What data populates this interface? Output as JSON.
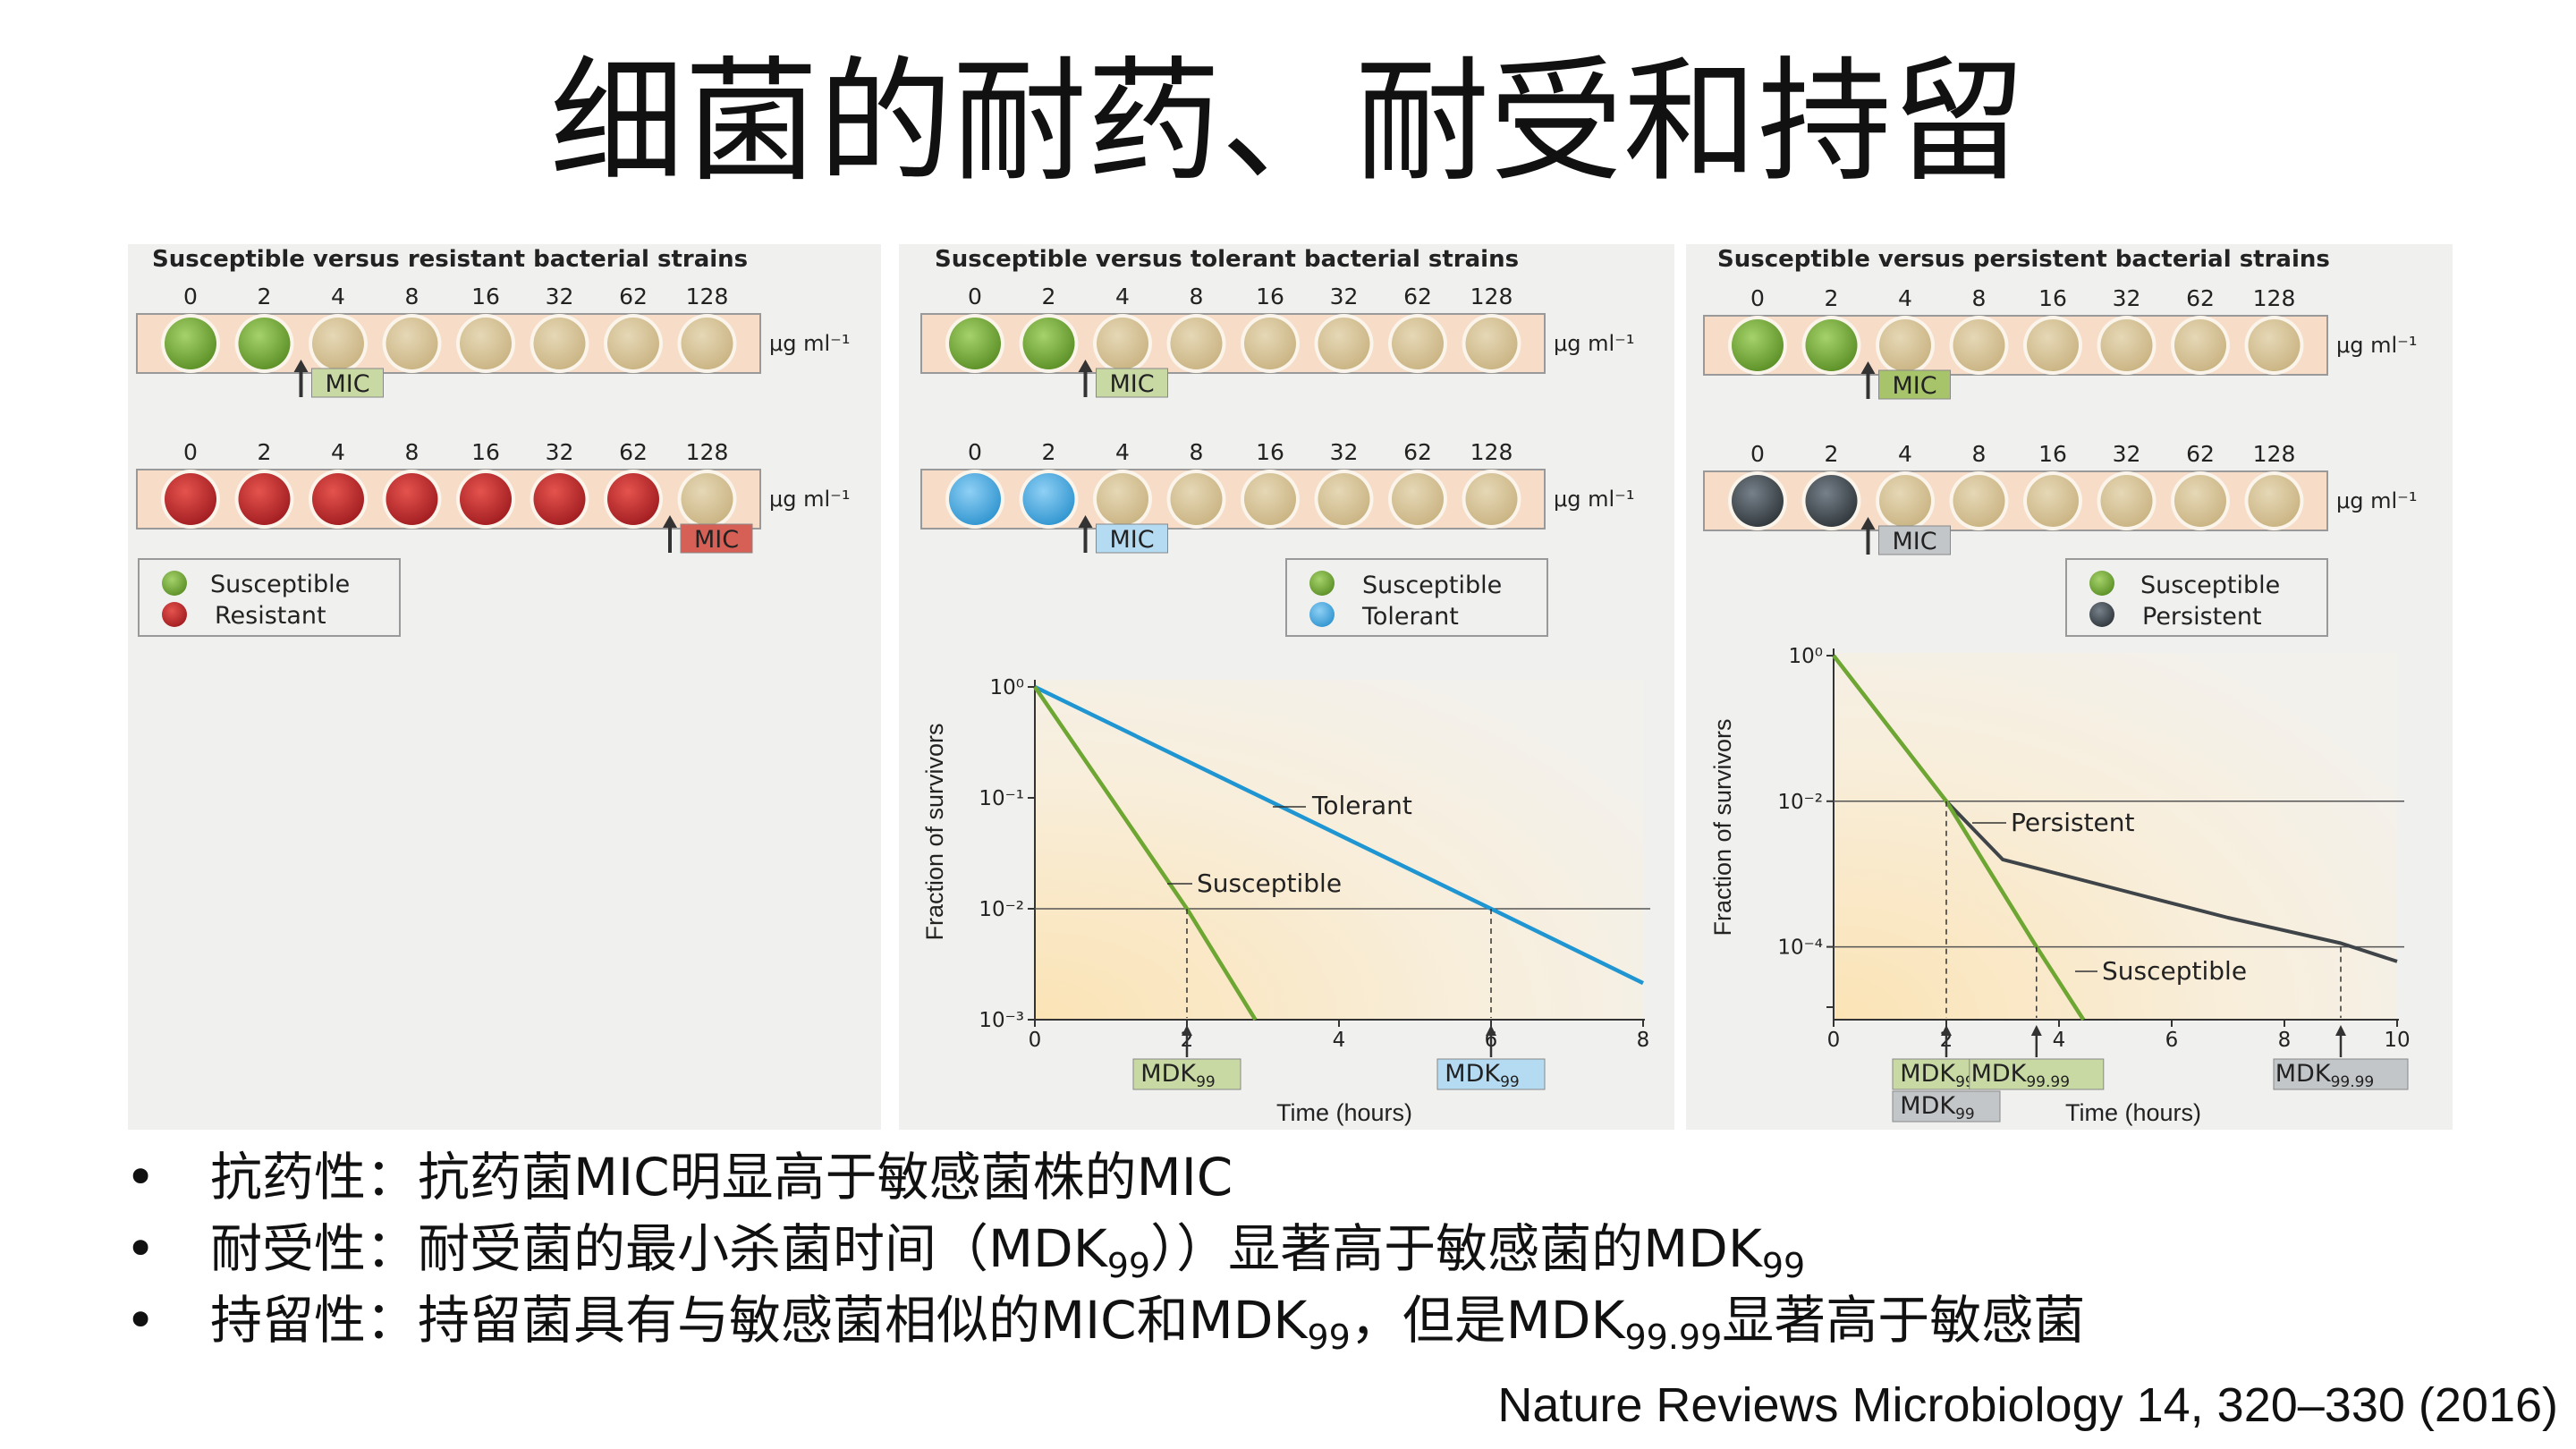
{
  "title": "细菌的耐药、耐受和持留",
  "panels": [
    {
      "title": "Susceptible versus resistant bacterial strains"
    },
    {
      "title": "Susceptible versus tolerant bacterial strains"
    },
    {
      "title": "Susceptible versus persistent bacterial strains"
    }
  ],
  "concentrations": [
    "0",
    "2",
    "4",
    "8",
    "16",
    "32",
    "62",
    "128"
  ],
  "unit_label": "μg ml⁻¹",
  "mic_label": "MIC",
  "legend": {
    "resistant": [
      "Susceptible",
      "Resistant"
    ],
    "tolerant": [
      "Susceptible",
      "Tolerant"
    ],
    "persistent": [
      "Susceptible",
      "Persistent"
    ]
  },
  "wells": {
    "resistant_row1": [
      "green",
      "green",
      "beige",
      "beige",
      "beige",
      "beige",
      "beige",
      "beige"
    ],
    "resistant_row2": [
      "red",
      "red",
      "red",
      "red",
      "red",
      "red",
      "red",
      "beige"
    ],
    "tolerant_row1": [
      "green",
      "green",
      "beige",
      "beige",
      "beige",
      "beige",
      "beige",
      "beige"
    ],
    "tolerant_row2": [
      "blue",
      "blue",
      "beige",
      "beige",
      "beige",
      "beige",
      "beige",
      "beige"
    ],
    "persistent_row1": [
      "green",
      "green",
      "beige",
      "beige",
      "beige",
      "beige",
      "beige",
      "beige"
    ],
    "persistent_row2": [
      "dark",
      "dark",
      "beige",
      "beige",
      "beige",
      "beige",
      "beige",
      "beige"
    ]
  },
  "mic_positions": {
    "resistant_row1": "after 2",
    "resistant_row2": "after 62",
    "tolerant_row1": "after 2",
    "tolerant_row2": "after 2",
    "persistent_row1": "after 2",
    "persistent_row2": "after 2"
  },
  "colors": {
    "green": "#7cad3c",
    "red": "#c62a2f",
    "blue": "#5ab2e4",
    "dark": "#4b545c",
    "beige": "#d8c59b",
    "tol_line": "#1f95d2",
    "sus_line": "#6da632",
    "per_line": "#3e4448",
    "panel_bg": "#f0f0ef",
    "strip_bg": "#f7dcc8",
    "mic_green": "#c8d9a4",
    "mic_red": "#d76056",
    "mic_blue": "#b5dbf2",
    "mic_gray": "#c3c6c9",
    "mic_green_dark": "#a7c46b"
  },
  "chart_data": [
    {
      "type": "line",
      "title": "",
      "xlabel": "Time (hours)",
      "ylabel": "Fraction of survivors",
      "xlim": [
        0,
        8
      ],
      "x_ticks": [
        "0",
        "2",
        "4",
        "6",
        "8"
      ],
      "ylim_log10": [
        -3,
        0
      ],
      "y_ticks": [
        "10⁰",
        "10⁻¹",
        "10⁻²",
        "10⁻³"
      ],
      "series": [
        {
          "name": "Tolerant",
          "x": [
            0,
            6,
            8
          ],
          "y_log10": [
            0,
            -2,
            -2.67
          ]
        },
        {
          "name": "Susceptible",
          "x": [
            0,
            2,
            2.9
          ],
          "y_log10": [
            0,
            -2,
            -3
          ]
        }
      ],
      "hlines_log10": [
        -2
      ],
      "markers": [
        {
          "label": "MDK",
          "sub": "99",
          "x": 2,
          "box": "green"
        },
        {
          "label": "MDK",
          "sub": "99",
          "x": 6,
          "box": "blue"
        }
      ]
    },
    {
      "type": "line",
      "title": "",
      "xlabel": "Time (hours)",
      "ylabel": "Fraction of survivors",
      "xlim": [
        0,
        10
      ],
      "x_ticks": [
        "0",
        "2",
        "4",
        "6",
        "8",
        "10"
      ],
      "ylim_log10": [
        -5,
        0
      ],
      "y_ticks": [
        "10⁰",
        "10⁻²",
        "10⁻⁴"
      ],
      "series": [
        {
          "name": "Persistent",
          "x": [
            0,
            2,
            3,
            5,
            7,
            9,
            10
          ],
          "y_log10": [
            0,
            -2,
            -2.8,
            -3.2,
            -3.6,
            -3.95,
            -4.2
          ]
        },
        {
          "name": "Susceptible",
          "x": [
            0,
            2,
            3.6,
            4.6
          ],
          "y_log10": [
            0,
            -2,
            -4,
            -5.2
          ]
        }
      ],
      "hlines_log10": [
        -2,
        -4
      ],
      "markers": [
        {
          "label": "MDK",
          "sub": "99",
          "x": 2,
          "box": "green"
        },
        {
          "label": "MDK",
          "sub": "99",
          "x": 2,
          "box": "gray"
        },
        {
          "label": "MDK",
          "sub": "99.99",
          "x": 3.6,
          "box": "green"
        },
        {
          "label": "MDK",
          "sub": "99.99",
          "x": 9,
          "box": "gray"
        }
      ]
    }
  ],
  "bullets": [
    {
      "text": "抗药性：抗药菌MIC明显高于敏感菌株的MIC"
    },
    {
      "parts": [
        "耐受性：耐受菌的最小杀菌时间（MDK",
        "99",
        "））显著高于敏感菌的MDK",
        "99"
      ]
    },
    {
      "parts": [
        "持留性：持留菌具有与敏感菌相似的MIC和MDK",
        "99",
        "，但是MDK",
        "99.99",
        "显著高于敏感菌"
      ]
    }
  ],
  "citation": "Nature Reviews Microbiology 14, 320–330 (2016)"
}
